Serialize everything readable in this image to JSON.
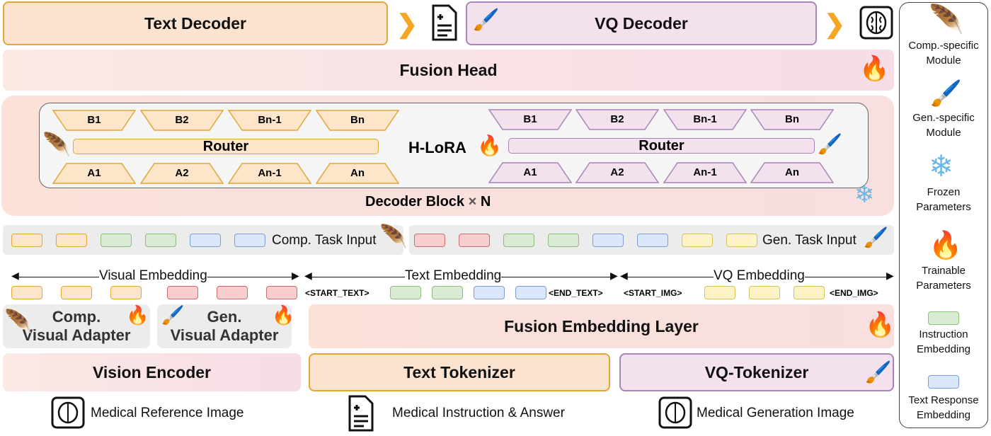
{
  "top": {
    "text_decoder": "Text Decoder",
    "vq_decoder": "VQ Decoder",
    "fusion_head": "Fusion Head"
  },
  "decoder": {
    "hlora": "H-LoRA",
    "router": "Router",
    "block_label": "Decoder Block",
    "times": "×",
    "n": "N",
    "b_labels": [
      "B1",
      "B2",
      "Bn-1",
      "Bn"
    ],
    "a_labels": [
      "A1",
      "A2",
      "An-1",
      "An"
    ]
  },
  "task_input": {
    "comp": "Comp. Task Input",
    "gen": "Gen. Task Input",
    "comp_boxes": [
      "orange",
      "orange",
      "green",
      "green",
      "blue",
      "blue"
    ],
    "gen_boxes": [
      "red",
      "red",
      "green",
      "green",
      "blue",
      "blue",
      "yellow",
      "yellow"
    ]
  },
  "embeddings": {
    "visual": "Visual Embedding",
    "text": "Text Embedding",
    "vq": "VQ Embedding",
    "start_text": "<START_TEXT>",
    "end_text": "<END_TEXT>",
    "start_img": "<START_IMG>",
    "end_img": "<END_IMG>"
  },
  "adapters": {
    "comp_1": "Comp.",
    "comp_2": "Visual Adapter",
    "gen_1": "Gen.",
    "gen_2": "Visual Adapter",
    "fusion_embedding": "Fusion Embedding Layer"
  },
  "encoders": {
    "vision": "Vision Encoder",
    "text": "Text Tokenizer",
    "vq": "VQ-Tokenizer"
  },
  "inputs": {
    "reference": "Medical Reference Image",
    "instruction": "Medical Instruction & Answer",
    "generation": "Medical Generation Image"
  },
  "legend": {
    "comp_1": "Comp.-specific",
    "comp_2": "Module",
    "gen_1": "Gen.-specific",
    "gen_2": "Module",
    "frozen_1": "Frozen",
    "frozen_2": "Parameters",
    "train_1": "Trainable",
    "train_2": "Parameters",
    "instr_1": "Instruction",
    "instr_2": "Embedding",
    "resp_1": "Text Response",
    "resp_2": "Embedding"
  },
  "icons": {
    "comp": "feather-icon",
    "gen": "brush-icon",
    "frozen": "snowflake-icon",
    "trainable": "flame-icon",
    "doc": "document-icon",
    "image": "brain-scan-icon"
  },
  "colors": {
    "orange": "#e2a634",
    "purple": "#a884b8",
    "green": "#8dbd78",
    "blue": "#7d9fd6",
    "red": "#cf6b6b",
    "yellow": "#d8c05a"
  }
}
